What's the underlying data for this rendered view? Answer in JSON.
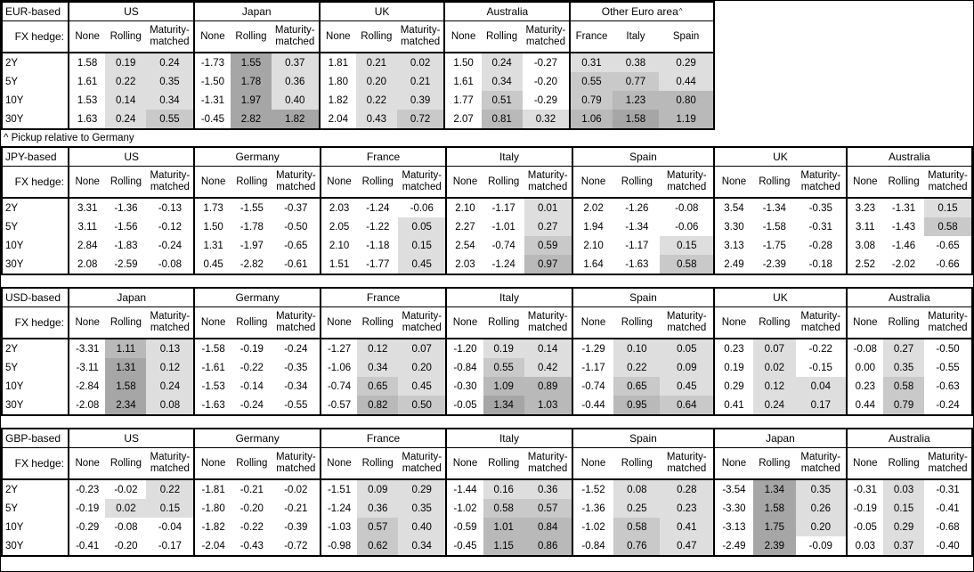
{
  "footnote": {
    "text": "^ Pickup relative to Germany"
  },
  "heatmap": {
    "note": "positive values in shaded columns get gray fill, darker for larger pickup",
    "buckets": [
      {
        "lt": 0.5,
        "color": "#dedede"
      },
      {
        "lt": 0.8,
        "color": "#c9c9c9"
      },
      {
        "lt": 1.3,
        "color": "#b9b9b9"
      }
    ],
    "max_color": "#a6a6a6"
  },
  "tables": [
    {
      "label": "EUR-based",
      "fx_hedge_label": "FX hedge:",
      "row_labels": [
        "2Y",
        "5Y",
        "10Y",
        "30Y"
      ],
      "groups": [
        {
          "name": "US",
          "cols": [
            "None",
            "Rolling",
            "Maturity-matched"
          ],
          "shade": [
            false,
            true,
            true
          ],
          "rows": [
            [
              "1.58",
              "0.19",
              "0.24"
            ],
            [
              "1.61",
              "0.22",
              "0.35"
            ],
            [
              "1.53",
              "0.14",
              "0.34"
            ],
            [
              "1.63",
              "0.24",
              "0.55"
            ]
          ]
        },
        {
          "name": "Japan",
          "cols": [
            "None",
            "Rolling",
            "Maturity-matched"
          ],
          "shade": [
            false,
            true,
            true
          ],
          "rows": [
            [
              "-1.73",
              "1.55",
              "0.37"
            ],
            [
              "-1.50",
              "1.78",
              "0.36"
            ],
            [
              "-1.31",
              "1.97",
              "0.40"
            ],
            [
              "-0.45",
              "2.82",
              "1.82"
            ]
          ]
        },
        {
          "name": "UK",
          "cols": [
            "None",
            "Rolling",
            "Maturity-matched"
          ],
          "shade": [
            false,
            true,
            true
          ],
          "rows": [
            [
              "1.81",
              "0.21",
              "0.02"
            ],
            [
              "1.80",
              "0.20",
              "0.21"
            ],
            [
              "1.82",
              "0.22",
              "0.39"
            ],
            [
              "2.04",
              "0.43",
              "0.72"
            ]
          ]
        },
        {
          "name": "Australia",
          "cols": [
            "None",
            "Rolling",
            "Maturity-matched"
          ],
          "shade": [
            false,
            true,
            true
          ],
          "rows": [
            [
              "1.50",
              "0.24",
              "-0.27"
            ],
            [
              "1.61",
              "0.34",
              "-0.20"
            ],
            [
              "1.77",
              "0.51",
              "-0.29"
            ],
            [
              "2.07",
              "0.81",
              "0.32"
            ]
          ]
        },
        {
          "name": "Other Euro area",
          "sup": "^",
          "cols": [
            "France",
            "Italy",
            "Spain"
          ],
          "shade": [
            true,
            true,
            true
          ],
          "rows": [
            [
              "0.31",
              "0.38",
              "0.29"
            ],
            [
              "0.55",
              "0.77",
              "0.44"
            ],
            [
              "0.79",
              "1.23",
              "0.80"
            ],
            [
              "1.06",
              "1.58",
              "1.19"
            ]
          ]
        }
      ]
    },
    {
      "label": "JPY-based",
      "fx_hedge_label": "FX hedge:",
      "row_labels": [
        "2Y",
        "5Y",
        "10Y",
        "30Y"
      ],
      "groups": [
        {
          "name": "US",
          "cols": [
            "None",
            "Rolling",
            "Maturity-matched"
          ],
          "shade": [
            false,
            true,
            true
          ],
          "rows": [
            [
              "3.31",
              "-1.36",
              "-0.13"
            ],
            [
              "3.11",
              "-1.56",
              "-0.12"
            ],
            [
              "2.84",
              "-1.83",
              "-0.24"
            ],
            [
              "2.08",
              "-2.59",
              "-0.08"
            ]
          ]
        },
        {
          "name": "Germany",
          "cols": [
            "None",
            "Rolling",
            "Maturity-matched"
          ],
          "shade": [
            false,
            true,
            true
          ],
          "rows": [
            [
              "1.73",
              "-1.55",
              "-0.37"
            ],
            [
              "1.50",
              "-1.78",
              "-0.50"
            ],
            [
              "1.31",
              "-1.97",
              "-0.65"
            ],
            [
              "0.45",
              "-2.82",
              "-0.61"
            ]
          ]
        },
        {
          "name": "France",
          "cols": [
            "None",
            "Rolling",
            "Maturity-matched"
          ],
          "shade": [
            false,
            true,
            true
          ],
          "rows": [
            [
              "2.03",
              "-1.24",
              "-0.06"
            ],
            [
              "2.05",
              "-1.22",
              "0.05"
            ],
            [
              "2.10",
              "-1.18",
              "0.15"
            ],
            [
              "1.51",
              "-1.77",
              "0.45"
            ]
          ]
        },
        {
          "name": "Italy",
          "cols": [
            "None",
            "Rolling",
            "Maturity-matched"
          ],
          "shade": [
            false,
            true,
            true
          ],
          "rows": [
            [
              "2.10",
              "-1.17",
              "0.01"
            ],
            [
              "2.27",
              "-1.01",
              "0.27"
            ],
            [
              "2.54",
              "-0.74",
              "0.59"
            ],
            [
              "2.03",
              "-1.24",
              "0.97"
            ]
          ]
        },
        {
          "name": "Spain",
          "cols": [
            "None",
            "Rolling",
            "Maturity-matched"
          ],
          "shade": [
            false,
            true,
            true
          ],
          "rows": [
            [
              "2.02",
              "-1.26",
              "-0.08"
            ],
            [
              "1.94",
              "-1.34",
              "-0.06"
            ],
            [
              "2.10",
              "-1.17",
              "0.15"
            ],
            [
              "1.64",
              "-1.63",
              "0.58"
            ]
          ]
        },
        {
          "name": "UK",
          "cols": [
            "None",
            "Rolling",
            "Maturity-matched"
          ],
          "shade": [
            false,
            true,
            true
          ],
          "rows": [
            [
              "3.54",
              "-1.34",
              "-0.35"
            ],
            [
              "3.30",
              "-1.58",
              "-0.31"
            ],
            [
              "3.13",
              "-1.75",
              "-0.28"
            ],
            [
              "2.49",
              "-2.39",
              "-0.18"
            ]
          ]
        },
        {
          "name": "Australia",
          "cols": [
            "None",
            "Rolling",
            "Maturity-matched"
          ],
          "shade": [
            false,
            true,
            true
          ],
          "rows": [
            [
              "3.23",
              "-1.31",
              "0.15"
            ],
            [
              "3.11",
              "-1.43",
              "0.58"
            ],
            [
              "3.08",
              "-1.46",
              "-0.65"
            ],
            [
              "2.52",
              "-2.02",
              "-0.66"
            ]
          ]
        }
      ]
    },
    {
      "label": "USD-based",
      "fx_hedge_label": "FX hedge:",
      "row_labels": [
        "2Y",
        "5Y",
        "10Y",
        "30Y"
      ],
      "groups": [
        {
          "name": "Japan",
          "cols": [
            "None",
            "Rolling",
            "Maturity-matched"
          ],
          "shade": [
            false,
            true,
            true
          ],
          "rows": [
            [
              "-3.31",
              "1.11",
              "0.13"
            ],
            [
              "-3.11",
              "1.31",
              "0.12"
            ],
            [
              "-2.84",
              "1.58",
              "0.24"
            ],
            [
              "-2.08",
              "2.34",
              "0.08"
            ]
          ]
        },
        {
          "name": "Germany",
          "cols": [
            "None",
            "Rolling",
            "Maturity-matched"
          ],
          "shade": [
            false,
            true,
            true
          ],
          "rows": [
            [
              "-1.58",
              "-0.19",
              "-0.24"
            ],
            [
              "-1.61",
              "-0.22",
              "-0.35"
            ],
            [
              "-1.53",
              "-0.14",
              "-0.34"
            ],
            [
              "-1.63",
              "-0.24",
              "-0.55"
            ]
          ]
        },
        {
          "name": "France",
          "cols": [
            "None",
            "Rolling",
            "Maturity-matched"
          ],
          "shade": [
            false,
            true,
            true
          ],
          "rows": [
            [
              "-1.27",
              "0.12",
              "0.07"
            ],
            [
              "-1.06",
              "0.34",
              "0.20"
            ],
            [
              "-0.74",
              "0.65",
              "0.45"
            ],
            [
              "-0.57",
              "0.82",
              "0.50"
            ]
          ]
        },
        {
          "name": "Italy",
          "cols": [
            "None",
            "Rolling",
            "Maturity-matched"
          ],
          "shade": [
            false,
            true,
            true
          ],
          "rows": [
            [
              "-1.20",
              "0.19",
              "0.14"
            ],
            [
              "-0.84",
              "0.55",
              "0.42"
            ],
            [
              "-0.30",
              "1.09",
              "0.89"
            ],
            [
              "-0.05",
              "1.34",
              "1.03"
            ]
          ]
        },
        {
          "name": "Spain",
          "cols": [
            "None",
            "Rolling",
            "Maturity-matched"
          ],
          "shade": [
            false,
            true,
            true
          ],
          "rows": [
            [
              "-1.29",
              "0.10",
              "0.05"
            ],
            [
              "-1.17",
              "0.22",
              "0.09"
            ],
            [
              "-0.74",
              "0.65",
              "0.45"
            ],
            [
              "-0.44",
              "0.95",
              "0.64"
            ]
          ]
        },
        {
          "name": "UK",
          "cols": [
            "None",
            "Rolling",
            "Maturity-matched"
          ],
          "shade": [
            false,
            true,
            true
          ],
          "rows": [
            [
              "0.23",
              "0.07",
              "-0.22"
            ],
            [
              "0.19",
              "0.02",
              "-0.15"
            ],
            [
              "0.29",
              "0.12",
              "0.04"
            ],
            [
              "0.41",
              "0.24",
              "0.17"
            ]
          ]
        },
        {
          "name": "Australia",
          "cols": [
            "None",
            "Rolling",
            "Maturity-matched"
          ],
          "shade": [
            false,
            true,
            true
          ],
          "rows": [
            [
              "-0.08",
              "0.27",
              "-0.50"
            ],
            [
              "0.00",
              "0.35",
              "-0.55"
            ],
            [
              "0.23",
              "0.58",
              "-0.63"
            ],
            [
              "0.44",
              "0.79",
              "-0.24"
            ]
          ]
        }
      ]
    },
    {
      "label": "GBP-based",
      "fx_hedge_label": "FX hedge:",
      "row_labels": [
        "2Y",
        "5Y",
        "10Y",
        "30Y"
      ],
      "groups": [
        {
          "name": "US",
          "cols": [
            "None",
            "Rolling",
            "Maturity-matched"
          ],
          "shade": [
            false,
            true,
            true
          ],
          "rows": [
            [
              "-0.23",
              "-0.02",
              "0.22"
            ],
            [
              "-0.19",
              "0.02",
              "0.15"
            ],
            [
              "-0.29",
              "-0.08",
              "-0.04"
            ],
            [
              "-0.41",
              "-0.20",
              "-0.17"
            ]
          ]
        },
        {
          "name": "Germany",
          "cols": [
            "None",
            "Rolling",
            "Maturity-matched"
          ],
          "shade": [
            false,
            true,
            true
          ],
          "rows": [
            [
              "-1.81",
              "-0.21",
              "-0.02"
            ],
            [
              "-1.80",
              "-0.20",
              "-0.21"
            ],
            [
              "-1.82",
              "-0.22",
              "-0.39"
            ],
            [
              "-2.04",
              "-0.43",
              "-0.72"
            ]
          ]
        },
        {
          "name": "France",
          "cols": [
            "None",
            "Rolling",
            "Maturity-matched"
          ],
          "shade": [
            false,
            true,
            true
          ],
          "rows": [
            [
              "-1.51",
              "0.09",
              "0.29"
            ],
            [
              "-1.24",
              "0.36",
              "0.35"
            ],
            [
              "-1.03",
              "0.57",
              "0.40"
            ],
            [
              "-0.98",
              "0.62",
              "0.34"
            ]
          ]
        },
        {
          "name": "Italy",
          "cols": [
            "None",
            "Rolling",
            "Maturity-matched"
          ],
          "shade": [
            false,
            true,
            true
          ],
          "rows": [
            [
              "-1.44",
              "0.16",
              "0.36"
            ],
            [
              "-1.02",
              "0.58",
              "0.57"
            ],
            [
              "-0.59",
              "1.01",
              "0.84"
            ],
            [
              "-0.45",
              "1.15",
              "0.86"
            ]
          ]
        },
        {
          "name": "Spain",
          "cols": [
            "None",
            "Rolling",
            "Maturity-matched"
          ],
          "shade": [
            false,
            true,
            true
          ],
          "rows": [
            [
              "-1.52",
              "0.08",
              "0.28"
            ],
            [
              "-1.36",
              "0.25",
              "0.23"
            ],
            [
              "-1.02",
              "0.58",
              "0.41"
            ],
            [
              "-0.84",
              "0.76",
              "0.47"
            ]
          ]
        },
        {
          "name": "Japan",
          "cols": [
            "None",
            "Rolling",
            "Maturity-matched"
          ],
          "shade": [
            false,
            true,
            true
          ],
          "rows": [
            [
              "-3.54",
              "1.34",
              "0.35"
            ],
            [
              "-3.30",
              "1.58",
              "0.26"
            ],
            [
              "-3.13",
              "1.75",
              "0.20"
            ],
            [
              "-2.49",
              "2.39",
              "-0.09"
            ]
          ]
        },
        {
          "name": "Australia",
          "cols": [
            "None",
            "Rolling",
            "Maturity-matched"
          ],
          "shade": [
            false,
            true,
            true
          ],
          "rows": [
            [
              "-0.31",
              "0.03",
              "-0.31"
            ],
            [
              "-0.19",
              "0.15",
              "-0.41"
            ],
            [
              "-0.05",
              "0.29",
              "-0.68"
            ],
            [
              "0.03",
              "0.37",
              "-0.40"
            ]
          ]
        }
      ]
    }
  ]
}
